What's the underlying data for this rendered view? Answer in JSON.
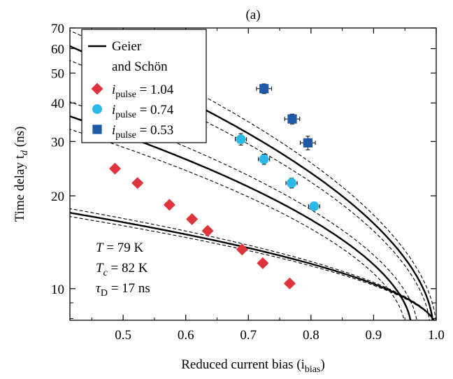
{
  "chart_data": {
    "type": "scatter",
    "panel_label": "(a)",
    "xlabel": "Reduced current bias (i",
    "xlabel_sub": "bias",
    "xlabel_end": ")",
    "ylabel": "Time delay t",
    "ylabel_sub": "d",
    "ylabel_end": " (ns)",
    "xlim": [
      0.415,
      1.0
    ],
    "ylim": [
      7.9,
      70
    ],
    "yscale": "log",
    "xticks": [
      0.5,
      0.6,
      0.7,
      0.8,
      0.9,
      1.0
    ],
    "xtick_labels": [
      "0.5",
      "0.6",
      "0.7",
      "0.8",
      "0.9",
      "1.0"
    ],
    "yticks": [
      10,
      20,
      30,
      40,
      50,
      60,
      70
    ],
    "ytick_labels": [
      "10",
      "20",
      "30",
      "40",
      "50",
      "60",
      "70"
    ],
    "grid": false,
    "legend_position": "top-left",
    "legend": {
      "theory_line1": "Geier",
      "theory_line2": "and Schön",
      "entries": [
        {
          "var": "i",
          "sub": "pulse",
          "text": " = 1.04",
          "marker": "diamond",
          "color": "#e0343c"
        },
        {
          "var": "i",
          "sub": "pulse",
          "text": " = 0.74",
          "marker": "circle",
          "color": "#2db8ea"
        },
        {
          "var": "i",
          "sub": "pulse",
          "text": " = 0.53",
          "marker": "square",
          "color": "#1f5aa8"
        }
      ]
    },
    "series": [
      {
        "legend_index": 0,
        "marker": "diamond",
        "color": "#e0343c",
        "points": [
          {
            "x": 0.487,
            "y": 24.5
          },
          {
            "x": 0.523,
            "y": 22.0
          },
          {
            "x": 0.574,
            "y": 18.7
          },
          {
            "x": 0.61,
            "y": 16.8
          },
          {
            "x": 0.635,
            "y": 15.4
          },
          {
            "x": 0.69,
            "y": 13.4
          },
          {
            "x": 0.723,
            "y": 12.1
          },
          {
            "x": 0.766,
            "y": 10.4
          }
        ],
        "xerr": 0.006
      },
      {
        "legend_index": 1,
        "marker": "circle",
        "color": "#2db8ea",
        "points": [
          {
            "x": 0.688,
            "y": 30.5,
            "yerr": 1.3
          },
          {
            "x": 0.725,
            "y": 26.3,
            "yerr": 1.0
          },
          {
            "x": 0.769,
            "y": 22.0,
            "yerr": 0.8
          },
          {
            "x": 0.805,
            "y": 18.5,
            "yerr": 0.5
          }
        ],
        "xerr": 0.009
      },
      {
        "legend_index": 2,
        "marker": "square",
        "color": "#1f5aa8",
        "points": [
          {
            "x": 0.725,
            "y": 44.5,
            "yerr": 1.6
          },
          {
            "x": 0.77,
            "y": 35.5,
            "yerr": 1.3
          },
          {
            "x": 0.795,
            "y": 29.7,
            "yerr": 1.5
          }
        ],
        "xerr": 0.012
      }
    ],
    "theory_curves": [
      {
        "a": 0.365,
        "b": 0.96,
        "c": 0.205,
        "style": "solid"
      },
      {
        "a": 0.385,
        "b": 0.95,
        "c": 0.205,
        "style": "dashed"
      },
      {
        "a": 0.345,
        "b": 0.97,
        "c": 0.205,
        "style": "dashed"
      },
      {
        "a": 0.415,
        "b": 0.995,
        "c": 0.3,
        "style": "solid"
      },
      {
        "a": 0.435,
        "b": 0.99,
        "c": 0.3,
        "style": "dashed"
      },
      {
        "a": 0.395,
        "b": 1.0,
        "c": 0.3,
        "style": "dashed"
      },
      {
        "a": 0.58,
        "b": 1.0,
        "c": 0.17,
        "style": "solid"
      },
      {
        "a": 0.6,
        "b": 1.0,
        "c": 0.17,
        "style": "dashed"
      },
      {
        "a": 0.56,
        "b": 1.0,
        "c": 0.17,
        "style": "dashed"
      }
    ],
    "params": [
      {
        "sym": "T",
        "sub": "",
        "text": " = 79 K"
      },
      {
        "sym": "T",
        "sub": "c",
        "text": " = 82 K"
      },
      {
        "sym": "τ",
        "sub": "D",
        "text": " = 17 ns"
      }
    ]
  }
}
